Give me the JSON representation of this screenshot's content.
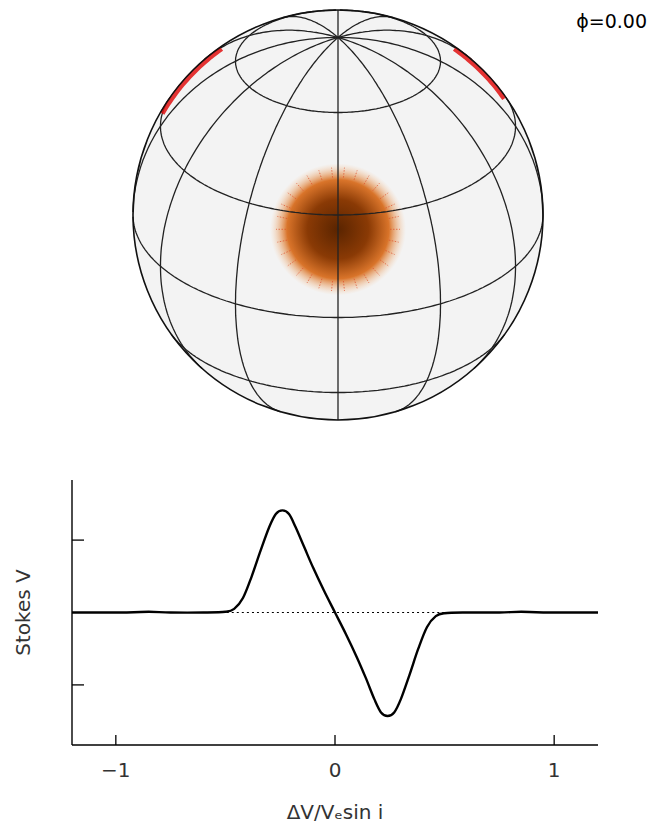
{
  "chart_data": {
    "type": "line",
    "xlabel": "ΔV/Vₑsin i",
    "ylabel": "Stokes V",
    "xlim": [
      -1.2,
      1.2
    ],
    "ylim": [
      -1.83,
      1.83
    ],
    "xticks": [
      -1,
      0,
      1
    ],
    "yticks": [
      -1,
      1
    ],
    "tick_labels": "x",
    "grid": false,
    "series": [
      {
        "color": "#000000",
        "line_style": "solid",
        "x": [
          -1.2,
          -0.95,
          -0.85,
          -0.75,
          -0.6,
          -0.5,
          -0.46,
          -0.42,
          -0.38,
          -0.34,
          -0.3,
          -0.27,
          -0.24,
          -0.21,
          -0.18,
          -0.14,
          -0.1,
          -0.05,
          0,
          0.05,
          0.1,
          0.14,
          0.18,
          0.21,
          0.24,
          0.27,
          0.3,
          0.34,
          0.38,
          0.42,
          0.46,
          0.5,
          0.6,
          0.75,
          0.85,
          0.95,
          1.2
        ],
        "values": [
          0,
          0,
          0.01,
          0,
          0,
          0.01,
          0.05,
          0.2,
          0.5,
          0.85,
          1.18,
          1.36,
          1.41,
          1.36,
          1.18,
          0.9,
          0.62,
          0.3,
          0,
          -0.3,
          -0.62,
          -0.9,
          -1.2,
          -1.38,
          -1.43,
          -1.38,
          -1.2,
          -0.86,
          -0.5,
          -0.2,
          -0.05,
          -0.01,
          0,
          0,
          0.01,
          0,
          0
        ]
      },
      {
        "color": "#000000",
        "line_style": "dotted",
        "x": [
          -1.2,
          1.2
        ],
        "values": [
          0,
          0
        ]
      }
    ]
  },
  "sphere": {
    "phase_label": "ϕ=0.00"
  }
}
